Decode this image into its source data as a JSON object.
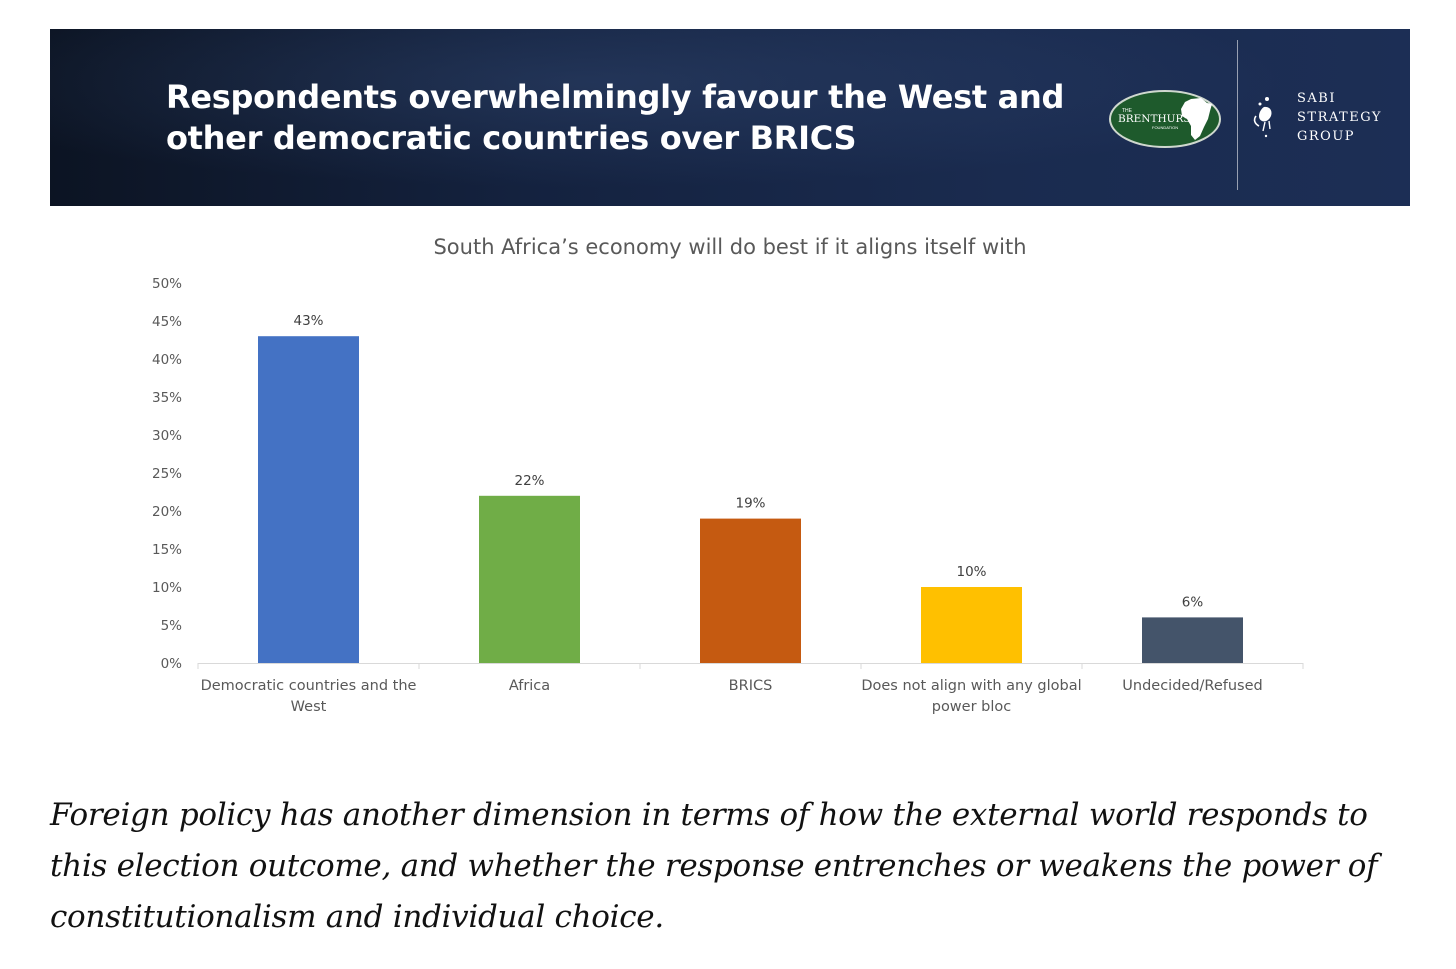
{
  "banner": {
    "title_line1": "Respondents overwhelmingly favour the West and",
    "title_line2": "other democratic countries over BRICS",
    "logo_brenthurst": {
      "small_top": "THE",
      "name": "BRENTHURST",
      "small_bottom": "FOUNDATION"
    },
    "logo_sabi": {
      "line1": "SABI",
      "line2": "STRATEGY",
      "line3": "GROUP"
    }
  },
  "chart_data": {
    "type": "bar",
    "title": "South Africa’s economy will do best if it aligns itself with",
    "categories": [
      {
        "line1": "Democratic countries and the",
        "line2": "West"
      },
      {
        "line1": "Africa",
        "line2": ""
      },
      {
        "line1": "BRICS",
        "line2": ""
      },
      {
        "line1": "Does not align with any global",
        "line2": "power bloc"
      },
      {
        "line1": "Undecided/Refused",
        "line2": ""
      }
    ],
    "values": [
      43,
      22,
      19,
      10,
      6
    ],
    "value_labels": [
      "43%",
      "22%",
      "19%",
      "10%",
      "6%"
    ],
    "colors": [
      "#4472c4",
      "#70ad47",
      "#c55a11",
      "#ffc000",
      "#44546a"
    ],
    "yticks": [
      "0%",
      "5%",
      "10%",
      "15%",
      "20%",
      "25%",
      "30%",
      "35%",
      "40%",
      "45%",
      "50%"
    ],
    "ylim": [
      0,
      50
    ],
    "xlabel": "",
    "ylabel": "",
    "grid": false
  },
  "caption": "Foreign policy has another dimension in terms of how the external world responds to this election outcome, and whether the response entrenches or weakens the power of constitutionalism and individual choice."
}
